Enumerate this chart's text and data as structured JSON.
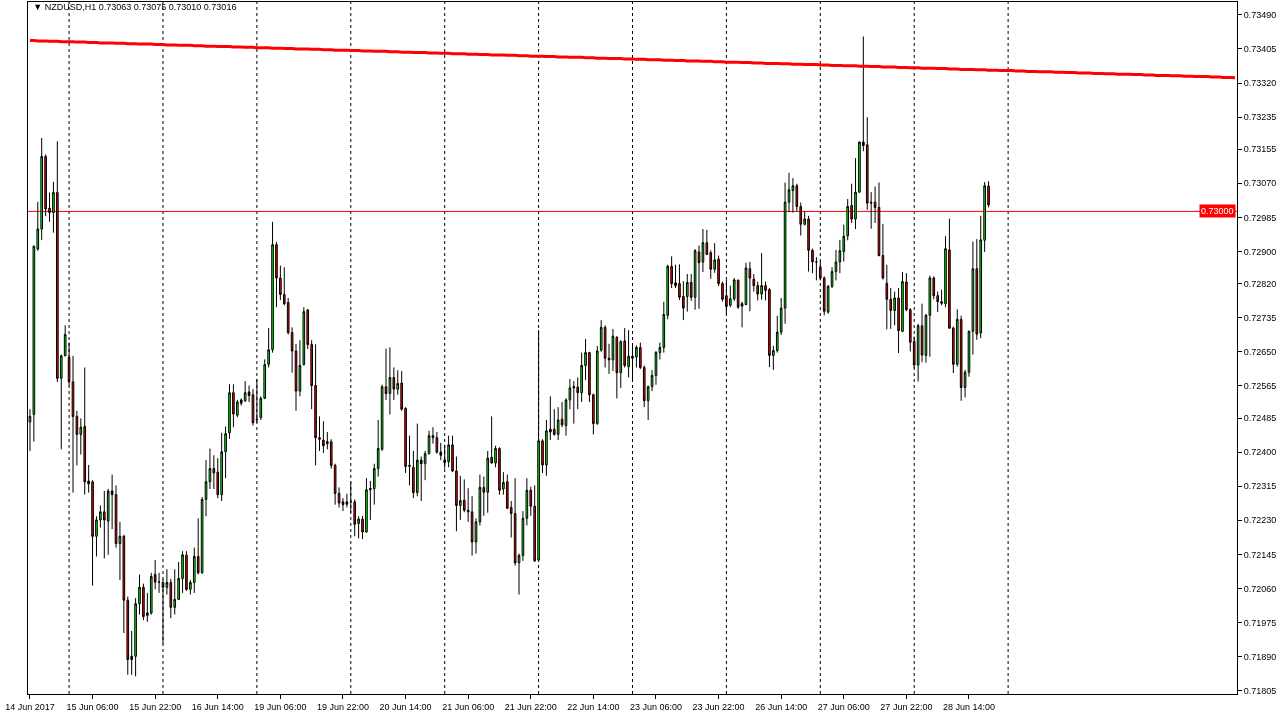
{
  "chart_data": {
    "type": "candlestick",
    "title": "▼ NZDUSD,H1 0.73063 0.73075 0.73010 0.73016",
    "categories": [
      "14 Jun 2017",
      null,
      null,
      null,
      null,
      null,
      null,
      null,
      null,
      null,
      null,
      null,
      null,
      null,
      null,
      null,
      "15 Jun 06:00",
      null,
      null,
      null,
      null,
      null,
      null,
      null,
      null,
      null,
      null,
      null,
      null,
      null,
      null,
      null,
      "15 Jun 22:00",
      null,
      null,
      null,
      null,
      null,
      null,
      null,
      null,
      null,
      null,
      null,
      null,
      null,
      null,
      null,
      "16 Jun 14:00",
      null,
      null,
      null,
      null,
      null,
      null,
      null,
      null,
      null,
      null,
      null,
      null,
      null,
      null,
      null,
      "19 Jun 06:00",
      null,
      null,
      null,
      null,
      null,
      null,
      null,
      null,
      null,
      null,
      null,
      null,
      null,
      null,
      null,
      "19 Jun 22:00",
      null,
      null,
      null,
      null,
      null,
      null,
      null,
      null,
      null,
      null,
      null,
      null,
      null,
      null,
      null,
      "20 Jun 14:00",
      null,
      null,
      null,
      null,
      null,
      null,
      null,
      null,
      null,
      null,
      null,
      null,
      null,
      null,
      null,
      "21 Jun 06:00",
      null,
      null,
      null,
      null,
      null,
      null,
      null,
      null,
      null,
      null,
      null,
      null,
      null,
      null,
      null,
      "21 Jun 22:00",
      null,
      null,
      null,
      null,
      null,
      null,
      null,
      null,
      null,
      null,
      null,
      null,
      null,
      null,
      null,
      "22 Jun 14:00",
      null,
      null,
      null,
      null,
      null,
      null,
      null,
      null,
      null,
      null,
      null,
      null,
      null,
      null,
      null,
      "23 Jun 06:00",
      null,
      null,
      null,
      null,
      null,
      null,
      null,
      null,
      null,
      null,
      null,
      null,
      null,
      null,
      null,
      "23 Jun 22:00",
      null,
      null,
      null,
      null,
      null,
      null,
      null,
      null,
      null,
      null,
      null,
      null,
      null,
      null,
      null,
      "26 Jun 14:00",
      null,
      null,
      null,
      null,
      null,
      null,
      null,
      null,
      null,
      null,
      null,
      null,
      null,
      null,
      null,
      "27 Jun 06:00",
      null,
      null,
      null,
      null,
      null,
      null,
      null,
      null,
      null,
      null,
      null,
      null,
      null,
      null,
      null,
      "27 Jun 22:00",
      null,
      null,
      null,
      null,
      null,
      null,
      null,
      null,
      null,
      null,
      null,
      null,
      null,
      null,
      null,
      "28 Jun 14:00",
      null,
      null,
      null,
      null,
      null,
      null,
      null,
      null,
      null,
      null,
      null,
      null,
      null,
      null,
      null,
      null,
      null,
      null,
      null,
      null,
      null,
      null,
      null,
      null,
      null,
      null,
      null,
      null,
      null,
      null,
      null,
      null,
      null,
      null,
      null,
      null,
      null,
      null,
      null,
      null,
      null,
      null,
      null,
      null,
      null,
      null,
      null,
      null,
      null,
      null,
      null,
      null,
      null,
      null,
      null,
      null,
      null,
      null,
      null,
      null,
      null,
      null,
      null,
      null,
      null,
      null,
      null,
      null
    ],
    "ohlc": [
      [
        0.72475,
        0.72507,
        0.72403,
        0.72489
      ],
      [
        0.72494,
        0.72915,
        0.72426,
        0.72913
      ],
      [
        0.72906,
        0.73024,
        0.72902,
        0.72956
      ],
      [
        0.72956,
        0.73183,
        0.72929,
        0.73137
      ],
      [
        0.73137,
        0.73142,
        0.72988,
        0.73006
      ],
      [
        0.73008,
        0.73047,
        0.72974,
        0.72997
      ],
      [
        0.72997,
        0.73074,
        0.72947,
        0.73047
      ],
      [
        0.73047,
        0.73175,
        0.72575,
        0.72584
      ],
      [
        0.72584,
        0.72643,
        0.72407,
        0.7264
      ],
      [
        0.7264,
        0.72716,
        0.72639,
        0.72693
      ],
      [
        0.72636,
        0.72673,
        0.72566,
        0.72575
      ],
      [
        0.72575,
        0.7264,
        0.72299,
        0.72489
      ],
      [
        0.72489,
        0.72503,
        0.72367,
        0.72444
      ],
      [
        0.72444,
        0.72484,
        0.72394,
        0.72462
      ],
      [
        0.72464,
        0.72611,
        0.72294,
        0.72326
      ],
      [
        0.72328,
        0.72368,
        0.72299,
        0.72321
      ],
      [
        0.72326,
        0.7233,
        0.72067,
        0.7219
      ],
      [
        0.7219,
        0.7224,
        0.7214,
        0.72231
      ],
      [
        0.72231,
        0.72267,
        0.72212,
        0.72251
      ],
      [
        0.72251,
        0.72303,
        0.72135,
        0.72231
      ],
      [
        0.72228,
        0.72308,
        0.72144,
        0.72303
      ],
      [
        0.72303,
        0.72344,
        0.72208,
        0.72294
      ],
      [
        0.72294,
        0.72317,
        0.72162,
        0.72172
      ],
      [
        0.72172,
        0.72226,
        0.72081,
        0.7219
      ],
      [
        0.7219,
        0.72194,
        0.71949,
        0.72031
      ],
      [
        0.72031,
        0.7204,
        0.71845,
        0.71883
      ],
      [
        0.71883,
        0.71954,
        0.71845,
        0.71891
      ],
      [
        0.71891,
        0.72036,
        0.71841,
        0.72022
      ],
      [
        0.72022,
        0.72095,
        0.71995,
        0.72063
      ],
      [
        0.72063,
        0.72072,
        0.71981,
        0.7199
      ],
      [
        0.71993,
        0.72049,
        0.71977,
        0.71999
      ],
      [
        0.71999,
        0.72099,
        0.71995,
        0.7209
      ],
      [
        0.72095,
        0.72131,
        0.72058,
        0.72076
      ],
      [
        0.72076,
        0.72099,
        0.72049,
        0.72076
      ],
      [
        0.72075,
        0.72084,
        0.71922,
        0.72063
      ],
      [
        0.72063,
        0.72108,
        0.72045,
        0.72075
      ],
      [
        0.72075,
        0.72084,
        0.71986,
        0.72013
      ],
      [
        0.72013,
        0.72108,
        0.71995,
        0.72033
      ],
      [
        0.72033,
        0.72126,
        0.72031,
        0.72085
      ],
      [
        0.72085,
        0.72153,
        0.72049,
        0.72144
      ],
      [
        0.72143,
        0.72153,
        0.72054,
        0.72058
      ],
      [
        0.72058,
        0.72081,
        0.72045,
        0.72075
      ],
      [
        0.72075,
        0.72162,
        0.72049,
        0.7214
      ],
      [
        0.7214,
        0.72235,
        0.72095,
        0.72099
      ],
      [
        0.72099,
        0.72288,
        0.72097,
        0.72282
      ],
      [
        0.72282,
        0.7238,
        0.7224,
        0.72326
      ],
      [
        0.72326,
        0.72409,
        0.72308,
        0.72359
      ],
      [
        0.72359,
        0.72392,
        0.72308,
        0.72348
      ],
      [
        0.7235,
        0.72385,
        0.72285,
        0.72294
      ],
      [
        0.72294,
        0.72448,
        0.72278,
        0.72401
      ],
      [
        0.72401,
        0.72464,
        0.72335,
        0.72446
      ],
      [
        0.72448,
        0.72569,
        0.72433,
        0.72548
      ],
      [
        0.72548,
        0.72569,
        0.72462,
        0.72495
      ],
      [
        0.72492,
        0.7253,
        0.72487,
        0.72525
      ],
      [
        0.72522,
        0.72534,
        0.72516,
        0.7253
      ],
      [
        0.72528,
        0.72577,
        0.72525,
        0.72548
      ],
      [
        0.7255,
        0.72566,
        0.72525,
        0.72541
      ],
      [
        0.72543,
        0.72557,
        0.72466,
        0.72473
      ],
      [
        0.7248,
        0.72582,
        0.72473,
        0.72482
      ],
      [
        0.72486,
        0.72539,
        0.7248,
        0.72534
      ],
      [
        0.72534,
        0.72631,
        0.72532,
        0.72618
      ],
      [
        0.72619,
        0.72709,
        0.72611,
        0.72655
      ],
      [
        0.72655,
        0.72974,
        0.72648,
        0.72917
      ],
      [
        0.72917,
        0.72924,
        0.72761,
        0.72834
      ],
      [
        0.72834,
        0.72865,
        0.72779,
        0.72793
      ],
      [
        0.72793,
        0.72861,
        0.72766,
        0.7277
      ],
      [
        0.72773,
        0.72784,
        0.72693,
        0.72698
      ],
      [
        0.72698,
        0.72711,
        0.72598,
        0.72652
      ],
      [
        0.72652,
        0.7267,
        0.72503,
        0.72552
      ],
      [
        0.72552,
        0.72679,
        0.72539,
        0.72616
      ],
      [
        0.72618,
        0.72761,
        0.72616,
        0.7275
      ],
      [
        0.72754,
        0.72757,
        0.72657,
        0.72668
      ],
      [
        0.72668,
        0.72679,
        0.72507,
        0.72566
      ],
      [
        0.72566,
        0.72669,
        0.72367,
        0.72436
      ],
      [
        0.72436,
        0.72489,
        0.72403,
        0.72432
      ],
      [
        0.7243,
        0.72477,
        0.72398,
        0.72416
      ],
      [
        0.72421,
        0.7245,
        0.72407,
        0.72426
      ],
      [
        0.72426,
        0.72432,
        0.72359,
        0.72367
      ],
      [
        0.72367,
        0.72371,
        0.72269,
        0.72297
      ],
      [
        0.72297,
        0.72312,
        0.72262,
        0.72273
      ],
      [
        0.72276,
        0.72285,
        0.72253,
        0.72269
      ],
      [
        0.7227,
        0.72296,
        0.72262,
        0.72276
      ],
      [
        0.72276,
        0.72326,
        0.72249,
        0.72276
      ],
      [
        0.72276,
        0.72282,
        0.7219,
        0.7222
      ],
      [
        0.72222,
        0.7224,
        0.72185,
        0.72233
      ],
      [
        0.72233,
        0.72241,
        0.72183,
        0.72201
      ],
      [
        0.72201,
        0.72335,
        0.72199,
        0.72306
      ],
      [
        0.72306,
        0.72328,
        0.72231,
        0.72309
      ],
      [
        0.72309,
        0.72371,
        0.72269,
        0.72359
      ],
      [
        0.72359,
        0.7248,
        0.72339,
        0.72409
      ],
      [
        0.72407,
        0.72568,
        0.72403,
        0.72563
      ],
      [
        0.72563,
        0.72658,
        0.7253,
        0.72546
      ],
      [
        0.72546,
        0.72661,
        0.72494,
        0.72586
      ],
      [
        0.72586,
        0.72611,
        0.7253,
        0.72557
      ],
      [
        0.72557,
        0.72604,
        0.72543,
        0.72571
      ],
      [
        0.72572,
        0.72602,
        0.72503,
        0.72507
      ],
      [
        0.72509,
        0.72512,
        0.72348,
        0.72364
      ],
      [
        0.72367,
        0.72441,
        0.72317,
        0.72365
      ],
      [
        0.72362,
        0.72403,
        0.72285,
        0.72299
      ],
      [
        0.72299,
        0.72471,
        0.7229,
        0.7238
      ],
      [
        0.7238,
        0.72389,
        0.72278,
        0.72371
      ],
      [
        0.72371,
        0.72403,
        0.7233,
        0.72396
      ],
      [
        0.72396,
        0.72453,
        0.72394,
        0.72441
      ],
      [
        0.72441,
        0.72462,
        0.72421,
        0.72436
      ],
      [
        0.72436,
        0.7245,
        0.72396,
        0.724
      ],
      [
        0.724,
        0.72423,
        0.7238,
        0.72392
      ],
      [
        0.7238,
        0.72418,
        0.72359,
        0.72374
      ],
      [
        0.72376,
        0.72441,
        0.72362,
        0.72418
      ],
      [
        0.72418,
        0.72441,
        0.7235,
        0.72353
      ],
      [
        0.72353,
        0.72389,
        0.72203,
        0.72267
      ],
      [
        0.72267,
        0.72341,
        0.72231,
        0.72279
      ],
      [
        0.7228,
        0.72332,
        0.7225,
        0.72255
      ],
      [
        0.72255,
        0.7231,
        0.72226,
        0.72251
      ],
      [
        0.72251,
        0.7229,
        0.72142,
        0.72176
      ],
      [
        0.72176,
        0.72235,
        0.72147,
        0.72226
      ],
      [
        0.72226,
        0.72344,
        0.72217,
        0.72312
      ],
      [
        0.72312,
        0.72339,
        0.72241,
        0.723
      ],
      [
        0.723,
        0.72403,
        0.72249,
        0.72385
      ],
      [
        0.72387,
        0.72489,
        0.72371,
        0.72373
      ],
      [
        0.72373,
        0.72416,
        0.72362,
        0.72409
      ],
      [
        0.72409,
        0.72412,
        0.72294,
        0.72305
      ],
      [
        0.72308,
        0.7235,
        0.72294,
        0.72324
      ],
      [
        0.72326,
        0.72344,
        0.72258,
        0.7226
      ],
      [
        0.72262,
        0.72278,
        0.72187,
        0.72247
      ],
      [
        0.72247,
        0.72335,
        0.72117,
        0.72124
      ],
      [
        0.72124,
        0.72147,
        0.72045,
        0.72142
      ],
      [
        0.72142,
        0.72253,
        0.72129,
        0.72235
      ],
      [
        0.72235,
        0.72335,
        0.72217,
        0.72305
      ],
      [
        0.72305,
        0.72314,
        0.72241,
        0.72265
      ],
      [
        0.72265,
        0.72317,
        0.72126,
        0.72129
      ],
      [
        0.72131,
        0.72704,
        0.72129,
        0.72428
      ],
      [
        0.72428,
        0.72432,
        0.72348,
        0.72368
      ],
      [
        0.72368,
        0.7248,
        0.72341,
        0.72453
      ],
      [
        0.7245,
        0.72539,
        0.7243,
        0.72457
      ],
      [
        0.72457,
        0.72507,
        0.72441,
        0.72444
      ],
      [
        0.72444,
        0.72512,
        0.7243,
        0.7248
      ],
      [
        0.72482,
        0.72525,
        0.72462,
        0.72468
      ],
      [
        0.72466,
        0.72534,
        0.72441,
        0.7253
      ],
      [
        0.7253,
        0.72582,
        0.72507,
        0.7256
      ],
      [
        0.7256,
        0.72577,
        0.72471,
        0.72563
      ],
      [
        0.72562,
        0.72586,
        0.72507,
        0.72548
      ],
      [
        0.72548,
        0.72648,
        0.72525,
        0.72616
      ],
      [
        0.72616,
        0.72682,
        0.7258,
        0.72648
      ],
      [
        0.72648,
        0.7265,
        0.72525,
        0.72543
      ],
      [
        0.72543,
        0.72546,
        0.72444,
        0.72471
      ],
      [
        0.72471,
        0.72664,
        0.72468,
        0.72652
      ],
      [
        0.72654,
        0.72729,
        0.7265,
        0.72711
      ],
      [
        0.72711,
        0.72716,
        0.72611,
        0.72634
      ],
      [
        0.72634,
        0.7267,
        0.72595,
        0.7263
      ],
      [
        0.7263,
        0.72707,
        0.72602,
        0.72689
      ],
      [
        0.72686,
        0.72689,
        0.72534,
        0.72598
      ],
      [
        0.72598,
        0.72679,
        0.7256,
        0.72675
      ],
      [
        0.72677,
        0.72709,
        0.72611,
        0.72616
      ],
      [
        0.72613,
        0.72704,
        0.72586,
        0.72639
      ],
      [
        0.72634,
        0.7267,
        0.72578,
        0.72639
      ],
      [
        0.72637,
        0.72666,
        0.72611,
        0.72661
      ],
      [
        0.72661,
        0.72673,
        0.72607,
        0.72611
      ],
      [
        0.72611,
        0.72616,
        0.72512,
        0.72528
      ],
      [
        0.72528,
        0.72566,
        0.7248,
        0.72563
      ],
      [
        0.72563,
        0.72604,
        0.72552,
        0.72591
      ],
      [
        0.72591,
        0.72652,
        0.72568,
        0.72648
      ],
      [
        0.72648,
        0.72673,
        0.72631,
        0.72661
      ],
      [
        0.72661,
        0.72775,
        0.72648,
        0.72743
      ],
      [
        0.72741,
        0.72867,
        0.72731,
        0.72863
      ],
      [
        0.72863,
        0.72888,
        0.72809,
        0.7282
      ],
      [
        0.72822,
        0.72867,
        0.72809,
        0.72815
      ],
      [
        0.7282,
        0.72868,
        0.72779,
        0.72786
      ],
      [
        0.72788,
        0.72826,
        0.72729,
        0.72759
      ],
      [
        0.72788,
        0.72844,
        0.7275,
        0.72823
      ],
      [
        0.72823,
        0.72844,
        0.72777,
        0.72786
      ],
      [
        0.72786,
        0.72906,
        0.72755,
        0.72902
      ],
      [
        0.72899,
        0.72915,
        0.72757,
        0.72872
      ],
      [
        0.72874,
        0.72956,
        0.72849,
        0.72922
      ],
      [
        0.72922,
        0.72954,
        0.72891,
        0.72893
      ],
      [
        0.72897,
        0.72903,
        0.72832,
        0.72856
      ],
      [
        0.72856,
        0.72921,
        0.72847,
        0.72879
      ],
      [
        0.72881,
        0.7289,
        0.72814,
        0.7282
      ],
      [
        0.7282,
        0.72825,
        0.72775,
        0.72781
      ],
      [
        0.7279,
        0.72829,
        0.72743,
        0.72763
      ],
      [
        0.72766,
        0.72815,
        0.72761,
        0.72782
      ],
      [
        0.72782,
        0.72834,
        0.72777,
        0.72829
      ],
      [
        0.72829,
        0.72829,
        0.72757,
        0.72761
      ],
      [
        0.72764,
        0.72775,
        0.72711,
        0.7277
      ],
      [
        0.72768,
        0.72872,
        0.72766,
        0.72859
      ],
      [
        0.72857,
        0.72874,
        0.72751,
        0.72834
      ],
      [
        0.72831,
        0.72844,
        0.728,
        0.72815
      ],
      [
        0.72815,
        0.72825,
        0.72778,
        0.72794
      ],
      [
        0.72794,
        0.72896,
        0.7278,
        0.72815
      ],
      [
        0.72815,
        0.72825,
        0.72778,
        0.72803
      ],
      [
        0.72805,
        0.72809,
        0.72612,
        0.72641
      ],
      [
        0.72641,
        0.72665,
        0.72605,
        0.72653
      ],
      [
        0.72653,
        0.7274,
        0.72648,
        0.72699
      ],
      [
        0.72699,
        0.72784,
        0.72692,
        0.72759
      ],
      [
        0.72759,
        0.73072,
        0.7272,
        0.73023
      ],
      [
        0.73023,
        0.73096,
        0.72998,
        0.73054
      ],
      [
        0.73052,
        0.73083,
        0.72997,
        0.73064
      ],
      [
        0.73064,
        0.73069,
        0.73,
        0.73012
      ],
      [
        0.73012,
        0.73022,
        0.7294,
        0.72968
      ],
      [
        0.72968,
        0.73,
        0.72965,
        0.72981
      ],
      [
        0.72981,
        0.72989,
        0.7285,
        0.72903
      ],
      [
        0.72903,
        0.72907,
        0.72846,
        0.72874
      ],
      [
        0.72874,
        0.72886,
        0.72828,
        0.72874
      ],
      [
        0.72861,
        0.72875,
        0.72828,
        0.72834
      ],
      [
        0.72834,
        0.72838,
        0.72741,
        0.72751
      ],
      [
        0.72749,
        0.72817,
        0.72745,
        0.72813
      ],
      [
        0.72813,
        0.72861,
        0.72809,
        0.7285
      ],
      [
        0.7285,
        0.72904,
        0.72828,
        0.72874
      ],
      [
        0.72874,
        0.72929,
        0.72846,
        0.72902
      ],
      [
        0.729,
        0.72967,
        0.72875,
        0.72938
      ],
      [
        0.72939,
        0.73031,
        0.72928,
        0.73012
      ],
      [
        0.73015,
        0.73069,
        0.72971,
        0.72981
      ],
      [
        0.72981,
        0.73133,
        0.72956,
        0.73048
      ],
      [
        0.73048,
        0.73174,
        0.73046,
        0.73173
      ],
      [
        0.73173,
        0.73436,
        0.7315,
        0.73164
      ],
      [
        0.73166,
        0.73235,
        0.73004,
        0.73021
      ],
      [
        0.73023,
        0.73048,
        0.72957,
        0.73021
      ],
      [
        0.73023,
        0.73062,
        0.72971,
        0.7301
      ],
      [
        0.7301,
        0.73072,
        0.72888,
        0.7289
      ],
      [
        0.7289,
        0.72969,
        0.7283,
        0.72834
      ],
      [
        0.72821,
        0.72867,
        0.72706,
        0.72781
      ],
      [
        0.72781,
        0.72809,
        0.72707,
        0.72753
      ],
      [
        0.72753,
        0.728,
        0.72716,
        0.72784
      ],
      [
        0.72784,
        0.72809,
        0.72647,
        0.72703
      ],
      [
        0.72701,
        0.72849,
        0.72699,
        0.72825
      ],
      [
        0.72824,
        0.72846,
        0.72751,
        0.72755
      ],
      [
        0.72755,
        0.72759,
        0.72651,
        0.72674
      ],
      [
        0.72676,
        0.72688,
        0.72609,
        0.72617
      ],
      [
        0.72617,
        0.7272,
        0.72576,
        0.72715
      ],
      [
        0.72715,
        0.7277,
        0.72624,
        0.72642
      ],
      [
        0.72641,
        0.72744,
        0.72623,
        0.72741
      ],
      [
        0.72741,
        0.7284,
        0.72638,
        0.72834
      ],
      [
        0.72834,
        0.72838,
        0.72781,
        0.7279
      ],
      [
        0.7279,
        0.728,
        0.72749,
        0.72775
      ],
      [
        0.72775,
        0.72805,
        0.72766,
        0.72771
      ],
      [
        0.7277,
        0.72938,
        0.72761,
        0.72907
      ],
      [
        0.72904,
        0.72982,
        0.72707,
        0.72709
      ],
      [
        0.72709,
        0.72713,
        0.72597,
        0.72619
      ],
      [
        0.72619,
        0.72756,
        0.72613,
        0.72731
      ],
      [
        0.72731,
        0.7274,
        0.72528,
        0.72561
      ],
      [
        0.72561,
        0.72605,
        0.72536,
        0.72599
      ],
      [
        0.72599,
        0.72703,
        0.72588,
        0.72701
      ],
      [
        0.72701,
        0.72925,
        0.72643,
        0.72857
      ],
      [
        0.72857,
        0.72931,
        0.7268,
        0.72694
      ],
      [
        0.72697,
        0.72989,
        0.72684,
        0.72929
      ],
      [
        0.72928,
        0.73073,
        0.72899,
        0.73064
      ],
      [
        0.73063,
        0.73075,
        0.7301,
        0.73016
      ],
      null,
      null,
      null,
      null,
      null,
      null,
      null,
      null,
      null,
      null,
      null,
      null,
      null,
      null,
      null,
      null,
      null,
      null,
      null,
      null,
      null,
      null,
      null,
      null,
      null,
      null,
      null,
      null,
      null,
      null,
      null,
      null,
      null,
      null,
      null,
      null,
      null,
      null,
      null,
      null,
      null,
      null,
      null,
      null,
      null,
      null,
      null,
      null,
      null,
      null,
      null,
      null,
      null,
      null,
      null,
      null,
      null,
      null,
      null,
      null,
      null,
      null,
      null
    ],
    "colors": [
      "#00ff00",
      "#00ff00",
      "#00ff00",
      "#00ff00",
      "#ff0000",
      "#ff0000",
      "#00ff00",
      "#ff0000",
      "#00ff00",
      "#00ff00",
      "#ff0000",
      "#ff0000",
      "#ff0000",
      "#00ff00",
      "#ff0000",
      "#000000",
      "#ff0000",
      "#00ff00",
      "#00ff00",
      "#ff0000",
      "#00ff00",
      "#000000",
      "#ff0000",
      "#00ff00",
      "#ff0000",
      "#ff0000",
      "#000000",
      "#00ff00",
      "#00ff00",
      "#ff0000",
      "#000000",
      "#00ff00",
      "#ff0000",
      "#000000",
      "#ff0000",
      "#00ff00",
      "#ff0000",
      "#00ff00",
      "#00ff00",
      "#00ff00",
      "#ff0000",
      "#00ff00",
      "#00ff00",
      "#ff0000",
      "#00ff00",
      "#00ff00",
      "#00ff00",
      "#ff0000",
      "#ff0000",
      "#00ff00",
      "#00ff00",
      "#00ff00",
      "#ff0000",
      "#00ff00",
      "#000000",
      "#00ff00",
      "#000000",
      "#ff0000",
      "#000000",
      "#00ff00",
      "#00ff00",
      "#00ff00",
      "#00ff00",
      "#ff0000",
      "#ff0000",
      "#ff0000",
      "#ff0000",
      "#ff0000",
      "#ff0000",
      "#00ff00",
      "#00ff00",
      "#ff0000",
      "#ff0000",
      "#ff0000",
      "#000000",
      "#ff0000",
      "#000000",
      "#ff0000",
      "#ff0000",
      "#ff0000",
      "#000000",
      "#000000",
      "#000000",
      "#ff0000",
      "#00ff00",
      "#ff0000",
      "#00ff00",
      "#000000",
      "#00ff00",
      "#00ff00",
      "#00ff00",
      "#ff0000",
      "#00ff00",
      "#ff0000",
      "#00ff00",
      "#ff0000",
      "#ff0000",
      "#000000",
      "#ff0000",
      "#00ff00",
      "#000000",
      "#00ff00",
      "#00ff00",
      "#000000",
      "#ff0000",
      "#000000",
      "#000000",
      "#00ff00",
      "#ff0000",
      "#ff0000",
      "#00ff00",
      "#ff0000",
      "#000000",
      "#ff0000",
      "#00ff00",
      "#00ff00",
      "#ff0000",
      "#00ff00",
      "#ff0000",
      "#00ff00",
      "#ff0000",
      "#00ff00",
      "#ff0000",
      "#ff0000",
      "#ff0000",
      "#00ff00",
      "#00ff00",
      "#00ff00",
      "#ff0000",
      "#ff0000",
      "#00ff00",
      "#ff0000",
      "#00ff00",
      "#000000",
      "#ff0000",
      "#00ff00",
      "#ff0000",
      "#00ff00",
      "#00ff00",
      "#000000",
      "#ff0000",
      "#00ff00",
      "#00ff00",
      "#ff0000",
      "#ff0000",
      "#00ff00",
      "#00ff00",
      "#ff0000",
      "#000000",
      "#00ff00",
      "#ff0000",
      "#00ff00",
      "#ff0000",
      "#00ff00",
      "#000000",
      "#00ff00",
      "#ff0000",
      "#ff0000",
      "#00ff00",
      "#00ff00",
      "#00ff00",
      "#00ff00",
      "#00ff00",
      "#00ff00",
      "#ff0000",
      "#000000",
      "#ff0000",
      "#ff0000",
      "#00ff00",
      "#ff0000",
      "#00ff00",
      "#ff0000",
      "#00ff00",
      "#ff0000",
      "#ff0000",
      "#00ff00",
      "#ff0000",
      "#ff0000",
      "#ff0000",
      "#00ff00",
      "#00ff00",
      "#ff0000",
      "#000000",
      "#00ff00",
      "#ff0000",
      "#ff0000",
      "#ff0000",
      "#00ff00",
      "#ff0000",
      "#ff0000",
      "#00ff00",
      "#00ff00",
      "#00ff00",
      "#00ff00",
      "#00ff00",
      "#00ff00",
      "#ff0000",
      "#ff0000",
      "#00ff00",
      "#ff0000",
      "#ff0000",
      "#000000",
      "#ff0000",
      "#ff0000",
      "#00ff00",
      "#00ff00",
      "#00ff00",
      "#00ff00",
      "#00ff00",
      "#00ff00",
      "#ff0000",
      "#00ff00",
      "#00ff00",
      "#000000",
      "#ff0000",
      "#000000",
      "#ff0000",
      "#ff0000",
      "#ff0000",
      "#ff0000",
      "#ff0000",
      "#00ff00",
      "#ff0000",
      "#00ff00",
      "#ff0000",
      "#ff0000",
      "#ff0000",
      "#00ff00",
      "#ff0000",
      "#00ff00",
      "#00ff00",
      "#ff0000",
      "#ff0000",
      "#000000",
      "#00ff00",
      "#ff0000",
      "#ff0000",
      "#00ff00",
      "#ff0000",
      "#00ff00",
      "#00ff00",
      "#00ff00",
      "#ff0000",
      "#00ff00",
      "#00ff00",
      "#ff0000",
      null,
      null,
      null,
      null,
      null,
      null,
      null,
      null,
      null,
      null,
      null,
      null,
      null,
      null,
      null,
      null,
      null,
      null,
      null,
      null,
      null,
      null,
      null,
      null,
      null,
      null,
      null,
      null,
      null,
      null,
      null,
      null,
      null,
      null,
      null,
      null,
      null,
      null,
      null,
      null,
      null,
      null,
      null,
      null,
      null,
      null,
      null,
      null,
      null,
      null,
      null,
      null,
      null,
      null,
      null,
      null,
      null,
      null,
      null,
      null,
      null,
      null,
      null
    ],
    "series": [
      {
        "type": "line",
        "color": "#ff0000",
        "values": [
          0.73426,
          0.73426,
          0.73425,
          0.73425,
          0.73425,
          0.73424,
          0.73424,
          0.73424,
          0.73423,
          0.73423,
          0.73423,
          0.73423,
          0.73422,
          0.73422,
          0.73422,
          0.73421,
          0.73421,
          0.73421,
          0.7342,
          0.7342,
          0.7342,
          0.7342,
          0.73419,
          0.73419,
          0.73419,
          0.73418,
          0.73418,
          0.73418,
          0.73417,
          0.73417,
          0.73417,
          0.73417,
          0.73416,
          0.73416,
          0.73416,
          0.73415,
          0.73415,
          0.73415,
          0.73414,
          0.73414,
          0.73414,
          0.73414,
          0.73413,
          0.73413,
          0.73413,
          0.73412,
          0.73412,
          0.73412,
          0.73411,
          0.73411,
          0.73411,
          0.73411,
          0.7341,
          0.7341,
          0.7341,
          0.73409,
          0.73409,
          0.73409,
          0.73408,
          0.73408,
          0.73408,
          0.73408,
          0.73407,
          0.73407,
          0.73407,
          0.73406,
          0.73406,
          0.73406,
          0.73405,
          0.73405,
          0.73405,
          0.73405,
          0.73404,
          0.73404,
          0.73404,
          0.73403,
          0.73403,
          0.73403,
          0.73402,
          0.73402,
          0.73402,
          0.73402,
          0.73401,
          0.73401,
          0.73401,
          0.734,
          0.734,
          0.734,
          0.73399,
          0.73399,
          0.73399,
          0.73399,
          0.73398,
          0.73398,
          0.73398,
          0.73397,
          0.73397,
          0.73397,
          0.73396,
          0.73396,
          0.73396,
          0.73396,
          0.73395,
          0.73395,
          0.73395,
          0.73394,
          0.73394,
          0.73394,
          0.73393,
          0.73393,
          0.73393,
          0.73393,
          0.73392,
          0.73392,
          0.73392,
          0.73391,
          0.73391,
          0.73391,
          0.7339,
          0.7339,
          0.7339,
          0.7339,
          0.73389,
          0.73389,
          0.73389,
          0.73388,
          0.73388,
          0.73388,
          0.73387,
          0.73387,
          0.73387,
          0.73387,
          0.73386,
          0.73386,
          0.73386,
          0.73385,
          0.73385,
          0.73385,
          0.73384,
          0.73384,
          0.73384,
          0.73384,
          0.73383,
          0.73383,
          0.73383,
          0.73382,
          0.73382,
          0.73382,
          0.73381,
          0.73381,
          0.73381,
          0.73381,
          0.7338,
          0.7338,
          0.7338,
          0.73379,
          0.73379,
          0.73379,
          0.73378,
          0.73378,
          0.73378,
          0.73378,
          0.73377,
          0.73377,
          0.73377,
          0.73376,
          0.73376,
          0.73376,
          0.73375,
          0.73375,
          0.73375,
          0.73375,
          0.73374,
          0.73374,
          0.73374,
          0.73373,
          0.73373,
          0.73373,
          0.73372,
          0.73372,
          0.73372,
          0.73372,
          0.73371,
          0.73371,
          0.73371,
          0.7337,
          0.7337,
          0.7337,
          0.73369,
          0.73369,
          0.73369,
          0.73369,
          0.73368,
          0.73368,
          0.73368,
          0.73367,
          0.73367,
          0.73367,
          0.73366,
          0.73366,
          0.73366,
          0.73366,
          0.73365,
          0.73365,
          0.73365,
          0.73364,
          0.73364,
          0.73364,
          0.73363,
          0.73363,
          0.73363,
          0.73363,
          0.73362,
          0.73362,
          0.73362,
          0.73361,
          0.73361,
          0.73361,
          0.7336,
          0.7336,
          0.7336,
          0.7336,
          0.73359,
          0.73359,
          0.73359,
          0.73358,
          0.73358,
          0.73358,
          0.73357,
          0.73357,
          0.73357,
          0.73357,
          0.73356,
          0.73356,
          0.73356,
          0.73355,
          0.73355,
          0.73355,
          0.73354,
          0.73354,
          0.73354,
          0.73354,
          0.73353,
          0.73353,
          0.73353,
          0.73352,
          0.73352,
          0.73352,
          0.73351,
          0.73351,
          0.73351,
          0.73351,
          0.7335,
          0.7335,
          0.7335,
          0.73349,
          0.73349,
          0.73349,
          0.73348,
          0.73348,
          0.73348,
          0.73348,
          0.73347,
          0.73347,
          0.73347,
          0.73346,
          0.73346,
          0.73346,
          0.73345,
          0.73345,
          0.73345,
          0.73345,
          0.73344,
          0.73344,
          0.73344,
          0.73343,
          0.73343,
          0.73343,
          0.73342,
          0.73342,
          0.73342,
          0.73342,
          0.73341,
          0.73341,
          0.73341,
          0.7334,
          0.7334,
          0.7334,
          0.73339,
          0.73339,
          0.73339,
          0.73339,
          0.73338,
          0.73338,
          0.73338,
          0.73337,
          0.73337,
          0.73337,
          0.73336,
          0.73336,
          0.73336,
          0.73336,
          0.73335,
          0.73335,
          0.73335,
          0.73334,
          0.73334,
          0.73334,
          0.73333
        ]
      }
    ],
    "ylim": [
      0.71797,
      0.73522
    ],
    "yticks": [
      {
        "value": 0.7349,
        "label": "0.73490"
      },
      {
        "value": 0.73405,
        "label": "0.73405"
      },
      {
        "value": 0.7332,
        "label": "0.73320"
      },
      {
        "value": 0.73235,
        "label": "0.73235"
      },
      {
        "value": 0.73155,
        "label": "0.73155"
      },
      {
        "value": 0.7307,
        "label": "0.73070"
      },
      {
        "value": 0.72985,
        "label": "0.72985"
      },
      {
        "value": 0.729,
        "label": "0.72900"
      },
      {
        "value": 0.7282,
        "label": "0.72820"
      },
      {
        "value": 0.72735,
        "label": "0.72735"
      },
      {
        "value": 0.7265,
        "label": "0.72650"
      },
      {
        "value": 0.72565,
        "label": "0.72565"
      },
      {
        "value": 0.72485,
        "label": "0.72485"
      },
      {
        "value": 0.724,
        "label": "0.72400"
      },
      {
        "value": 0.72315,
        "label": "0.72315"
      },
      {
        "value": 0.7223,
        "label": "0.72230"
      },
      {
        "value": 0.72145,
        "label": "0.72145"
      },
      {
        "value": 0.7206,
        "label": "0.72060"
      },
      {
        "value": 0.71975,
        "label": "0.71975"
      },
      {
        "value": 0.7189,
        "label": "0.71890"
      },
      {
        "value": 0.71805,
        "label": "0.71805"
      }
    ],
    "ref_lines": [
      {
        "axis": "y",
        "value": 0.73,
        "label": "0.73000",
        "color": "#ff0000"
      }
    ]
  }
}
